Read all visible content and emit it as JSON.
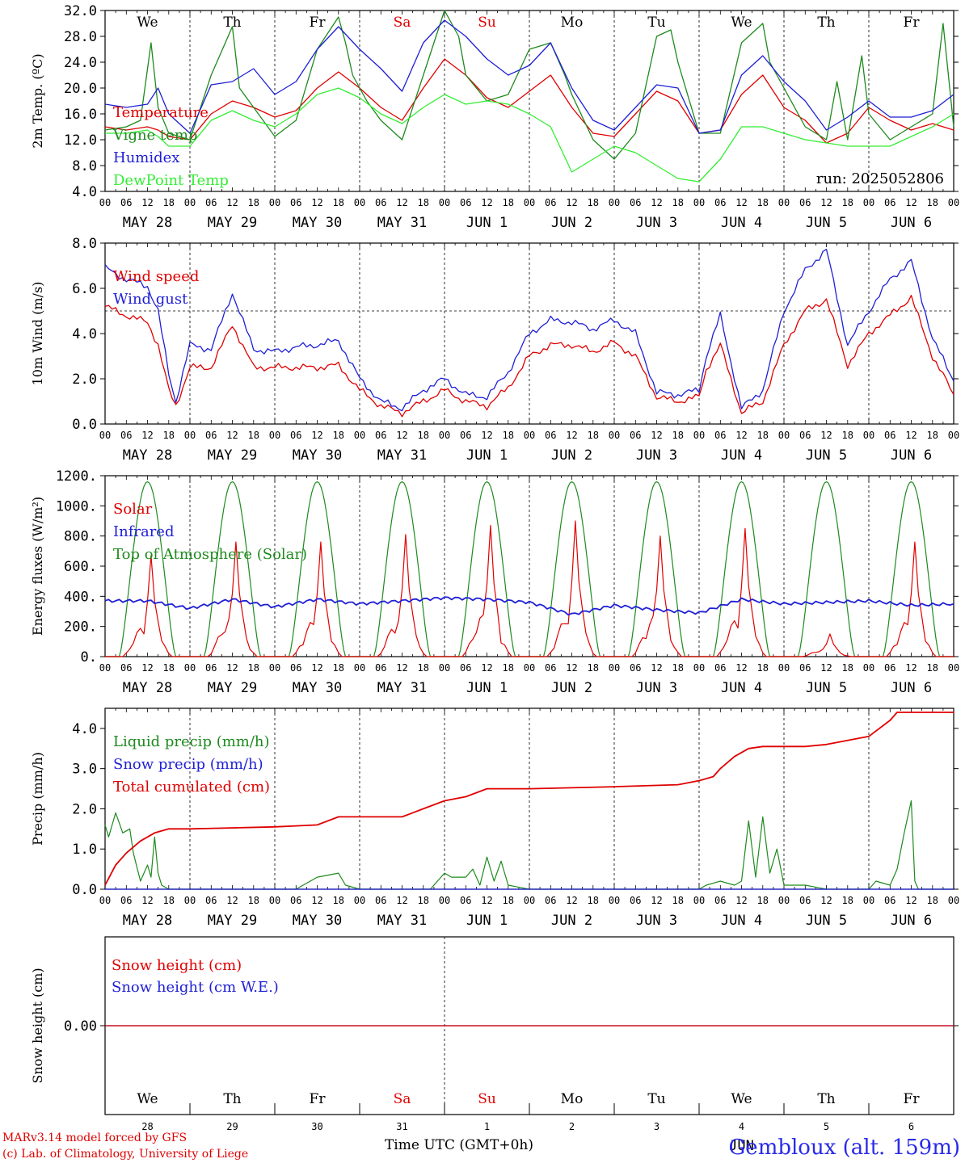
{
  "colors": {
    "red": "#e00000",
    "blue": "#1f1fd6",
    "green": "#1e8a1e",
    "lightgreen": "#33ee33",
    "black": "#000000"
  },
  "days": [
    "We",
    "Th",
    "Fr",
    "Sa",
    "Su",
    "Mo",
    "Tu",
    "We",
    "Th",
    "Fr"
  ],
  "weekend_days": [
    3,
    4
  ],
  "dates": [
    "MAY 28",
    "MAY 29",
    "MAY 30",
    "MAY 31",
    "JUN  1",
    "JUN  2",
    "JUN  3",
    "JUN  4",
    "JUN  5",
    "JUN  6"
  ],
  "day_numbers": [
    "28",
    "29",
    "30",
    "31",
    "1",
    "2",
    "3",
    "4",
    "5",
    "6"
  ],
  "hour_labels": [
    "00",
    "06",
    "12",
    "18"
  ],
  "hour_label_end": "00",
  "run_label": "run: 2025052806",
  "x_axis_title": "Time UTC (GMT+0h)",
  "bottom_month": "JUN",
  "footer": [
    "MARv3.14 model forced by GFS",
    "(c) Lab. of Climatology, University of Liege"
  ],
  "location": "Gembloux (alt. 159m)",
  "chart_data": [
    {
      "id": "temp",
      "type": "line",
      "ylabel": "2m Temp. (ºC)",
      "ylim": [
        4,
        32
      ],
      "yticks": [
        "4.0",
        "8.0",
        "12.0",
        "16.0",
        "20.0",
        "24.0",
        "28.0",
        "32.0"
      ],
      "ytick_values": [
        4,
        8,
        12,
        16,
        20,
        24,
        28,
        32
      ],
      "xlim_hours": [
        0,
        240
      ],
      "series": [
        {
          "name": "Temperature",
          "color": "#e00000",
          "x": [
            0,
            6,
            12,
            15,
            18,
            24,
            30,
            36,
            42,
            48,
            54,
            60,
            66,
            72,
            78,
            84,
            90,
            96,
            102,
            108,
            114,
            120,
            126,
            132,
            138,
            144,
            150,
            156,
            162,
            168,
            174,
            180,
            186,
            192,
            198,
            204,
            210,
            216,
            222,
            228,
            234,
            240
          ],
          "y": [
            14,
            13.5,
            14,
            13.5,
            12.5,
            12,
            16,
            18,
            17,
            15.5,
            16.5,
            20,
            22.5,
            20,
            17,
            15,
            20,
            24.5,
            22,
            18.5,
            17,
            19.5,
            22,
            17,
            13,
            12.5,
            16,
            19.5,
            18,
            13,
            13.5,
            19,
            22,
            17,
            15,
            11.5,
            13,
            17,
            15,
            13.5,
            14.5,
            13.5
          ]
        },
        {
          "name": "Vigne temp",
          "color": "#1e8a1e",
          "x": [
            0,
            6,
            10,
            13,
            15,
            18,
            24,
            30,
            36,
            38,
            42,
            48,
            54,
            60,
            66,
            68,
            70,
            74,
            78,
            84,
            90,
            96,
            100,
            102,
            108,
            114,
            120,
            126,
            130,
            132,
            138,
            144,
            150,
            156,
            160,
            162,
            168,
            174,
            180,
            186,
            188,
            192,
            198,
            204,
            207,
            210,
            214,
            216,
            222,
            228,
            234,
            237,
            240
          ],
          "y": [
            13.5,
            14,
            15,
            27,
            17,
            13,
            12,
            22,
            29.5,
            20,
            17,
            12.5,
            15,
            26,
            31,
            27,
            22,
            18,
            15,
            12,
            22,
            32,
            28,
            22,
            18,
            19,
            26,
            27,
            22,
            19,
            12,
            9,
            13,
            28,
            29,
            24,
            13,
            13,
            27,
            30,
            24,
            20,
            14,
            12,
            21,
            12,
            25,
            16,
            12,
            14,
            16,
            30,
            14
          ]
        },
        {
          "name": "Humidex",
          "color": "#1f1fd6",
          "x": [
            0,
            6,
            12,
            15,
            18,
            24,
            30,
            36,
            42,
            48,
            54,
            60,
            66,
            72,
            78,
            84,
            90,
            96,
            102,
            108,
            114,
            120,
            126,
            132,
            138,
            144,
            150,
            156,
            162,
            168,
            174,
            180,
            186,
            192,
            198,
            204,
            210,
            216,
            222,
            228,
            234,
            240
          ],
          "y": [
            17.5,
            17,
            17.5,
            20,
            16,
            13,
            20.5,
            21,
            23,
            19,
            21,
            26,
            29.5,
            26,
            23,
            19.5,
            27,
            30.5,
            28,
            24.5,
            22,
            23.5,
            27,
            20,
            15,
            13.5,
            17,
            20.5,
            20,
            13,
            13.5,
            22,
            25,
            21,
            18,
            13.5,
            15.5,
            18,
            15.5,
            15.5,
            16.5,
            19
          ]
        },
        {
          "name": "DewPoint Temp",
          "color": "#33ee33",
          "x": [
            0,
            6,
            12,
            15,
            18,
            24,
            30,
            36,
            42,
            48,
            54,
            60,
            66,
            72,
            78,
            84,
            90,
            96,
            102,
            108,
            114,
            120,
            126,
            132,
            138,
            144,
            150,
            156,
            162,
            168,
            174,
            180,
            186,
            192,
            198,
            204,
            210,
            216,
            222,
            228,
            234,
            240
          ],
          "y": [
            13,
            13,
            13.5,
            12.5,
            11,
            11,
            15,
            16.5,
            15,
            14,
            16,
            19,
            20,
            18.5,
            16,
            14.5,
            17,
            19,
            17.5,
            18,
            17.5,
            16,
            14,
            7,
            9,
            11,
            10,
            8,
            6,
            5.5,
            9,
            14,
            14,
            13,
            12,
            11.5,
            11,
            11,
            11,
            12.5,
            14,
            16
          ]
        }
      ]
    },
    {
      "id": "wind",
      "type": "line",
      "ylabel": "10m Wind (m/s)",
      "ylim": [
        0,
        8
      ],
      "yticks": [
        "0.0",
        "2.0",
        "4.0",
        "6.0",
        "8.0"
      ],
      "ytick_values": [
        0,
        2,
        4,
        6,
        8
      ],
      "reference_line": 5,
      "xlim_hours": [
        0,
        240
      ],
      "series": [
        {
          "name": "Wind speed",
          "color": "#e00000",
          "x": [
            0,
            6,
            12,
            15,
            18,
            20,
            24,
            30,
            36,
            42,
            48,
            54,
            60,
            66,
            72,
            78,
            84,
            90,
            96,
            102,
            108,
            114,
            120,
            126,
            132,
            138,
            144,
            150,
            156,
            162,
            168,
            170,
            174,
            180,
            186,
            192,
            198,
            204,
            210,
            216,
            222,
            228,
            234,
            240
          ],
          "y": [
            5.2,
            4.8,
            4.5,
            3.5,
            1.5,
            0.8,
            2.5,
            2.5,
            4.4,
            2.5,
            2.5,
            2.5,
            2.5,
            2.6,
            1.5,
            0.8,
            0.5,
            1,
            1.5,
            1,
            0.8,
            1.6,
            3,
            3.5,
            3.5,
            3.2,
            3.6,
            3,
            1.2,
            1,
            1.2,
            2.4,
            3.5,
            0.5,
            1,
            3.5,
            5,
            5.5,
            2.6,
            4,
            4.8,
            5.6,
            3,
            1.3
          ]
        },
        {
          "name": "Wind gust",
          "color": "#1f1fd6",
          "x": [
            0,
            6,
            12,
            15,
            18,
            20,
            24,
            30,
            36,
            42,
            48,
            54,
            60,
            66,
            72,
            78,
            84,
            90,
            96,
            102,
            108,
            114,
            120,
            126,
            132,
            138,
            144,
            150,
            156,
            162,
            168,
            170,
            174,
            180,
            186,
            192,
            198,
            204,
            210,
            216,
            222,
            228,
            234,
            240
          ],
          "y": [
            6.9,
            6.4,
            6.1,
            5,
            2.2,
            1,
            3.5,
            3.3,
            5.8,
            3.3,
            3.2,
            3.4,
            3.5,
            3.7,
            2,
            1,
            0.7,
            1.5,
            2,
            1.3,
            1.2,
            2.3,
            4,
            4.6,
            4.5,
            4.2,
            4.6,
            4,
            1.4,
            1.3,
            1.5,
            3,
            4.8,
            0.7,
            1.5,
            5,
            6.8,
            7.7,
            3.5,
            5,
            6.4,
            7.2,
            3.8,
            1.9
          ]
        }
      ]
    },
    {
      "id": "energy",
      "type": "line",
      "ylabel": "Energy fluxes (W/m²)",
      "ylim": [
        0,
        1200
      ],
      "yticks": [
        "0.",
        "200.",
        "400.",
        "600.",
        "800.",
        "1000.",
        "1200."
      ],
      "ytick_values": [
        0,
        200,
        400,
        600,
        800,
        1000,
        1200
      ],
      "xlim_hours": [
        0,
        240
      ],
      "series": [
        {
          "name": "Solar",
          "color": "#e00000",
          "daily_peaks": [
            670,
            760,
            760,
            810,
            870,
            900,
            800,
            850,
            150,
            760
          ]
        },
        {
          "name": "Infrared",
          "color": "#1f1fd6",
          "x": [
            0,
            12,
            24,
            36,
            48,
            60,
            72,
            84,
            96,
            108,
            120,
            132,
            144,
            156,
            168,
            180,
            192,
            204,
            216,
            228,
            240
          ],
          "y": [
            370,
            370,
            320,
            380,
            330,
            380,
            350,
            370,
            390,
            380,
            360,
            280,
            340,
            310,
            290,
            380,
            350,
            360,
            370,
            340,
            350
          ]
        },
        {
          "name": "Top of Atmosphere (Solar)",
          "color": "#1e8a1e",
          "peak": 1160,
          "sunrise_hour": 4,
          "sunset_hour": 20
        }
      ]
    },
    {
      "id": "precip",
      "type": "line",
      "ylabel": "Precip (mm/h)",
      "ylim": [
        0,
        4.5
      ],
      "yticks": [
        "0.0",
        "1.0",
        "2.0",
        "3.0",
        "4.0"
      ],
      "ytick_values": [
        0,
        1,
        2,
        3,
        4
      ],
      "xlim_hours": [
        0,
        240
      ],
      "series": [
        {
          "name": "Liquid precip (mm/h)",
          "color": "#1e8a1e",
          "x": [
            0,
            1,
            3,
            5,
            7,
            8,
            10,
            12,
            13,
            14,
            15,
            16,
            18,
            20,
            24,
            30,
            36,
            48,
            54,
            60,
            66,
            68,
            72,
            76,
            80,
            84,
            88,
            90,
            92,
            94,
            96,
            98,
            102,
            104,
            106,
            108,
            110,
            112,
            114,
            120,
            126,
            132,
            144,
            156,
            162,
            168,
            170,
            174,
            178,
            180,
            182,
            184,
            186,
            188,
            190,
            192,
            198,
            204,
            210,
            216,
            218,
            222,
            224,
            226,
            228,
            229,
            230,
            232,
            240
          ],
          "y": [
            1.6,
            1.3,
            1.9,
            1.4,
            1.5,
            0.9,
            0.2,
            0.6,
            0.3,
            1.3,
            0.4,
            0.1,
            0,
            0,
            0,
            0,
            0,
            0,
            0,
            0.3,
            0.4,
            0.1,
            0,
            0,
            0,
            0,
            0,
            0,
            0,
            0.2,
            0.4,
            0.3,
            0.3,
            0.5,
            0.1,
            0.8,
            0.2,
            0.7,
            0.1,
            0,
            0,
            0,
            0,
            0,
            0,
            0,
            0.1,
            0.2,
            0.1,
            0.2,
            1.7,
            0.3,
            1.8,
            0.4,
            1.0,
            0.1,
            0.1,
            0,
            0,
            0,
            0.2,
            0.1,
            0.5,
            1.4,
            2.2,
            0.2,
            0,
            0,
            0
          ]
        },
        {
          "name": "Snow precip (mm/h)",
          "color": "#1f1fd6",
          "x": [
            0,
            240
          ],
          "y": [
            0,
            0
          ]
        },
        {
          "name": "Total cumulated (cm)",
          "color": "#e00000",
          "x": [
            0,
            3,
            6,
            10,
            14,
            18,
            24,
            48,
            60,
            66,
            72,
            84,
            90,
            96,
            102,
            108,
            114,
            120,
            144,
            162,
            168,
            172,
            174,
            178,
            182,
            186,
            192,
            198,
            204,
            216,
            222,
            224,
            226,
            228,
            240
          ],
          "y": [
            0.1,
            0.6,
            0.9,
            1.2,
            1.4,
            1.5,
            1.5,
            1.55,
            1.6,
            1.8,
            1.8,
            1.8,
            2,
            2.2,
            2.3,
            2.5,
            2.5,
            2.5,
            2.55,
            2.6,
            2.7,
            2.8,
            3.0,
            3.3,
            3.5,
            3.55,
            3.55,
            3.55,
            3.6,
            3.8,
            4.2,
            4.4,
            4.4,
            4.4,
            4.4
          ]
        }
      ]
    },
    {
      "id": "snow",
      "type": "line",
      "ylabel": "Snow height (cm)",
      "yticks": [
        "0.00"
      ],
      "ytick_values": [
        0
      ],
      "xlim_hours": [
        0,
        240
      ],
      "series": [
        {
          "name": "Snow height (cm)",
          "color": "#e00000",
          "x": [
            0,
            240
          ],
          "y": [
            0,
            0
          ]
        },
        {
          "name": "Snow height (cm W.E.)",
          "color": "#1f1fd6",
          "x": [
            0,
            240
          ],
          "y": [
            0,
            0
          ]
        }
      ]
    }
  ]
}
